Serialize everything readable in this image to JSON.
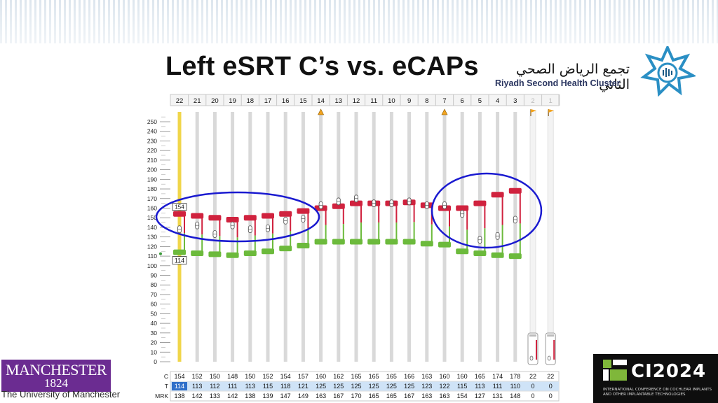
{
  "title": "Left eSRT C’s vs. eCAPs",
  "logo": {
    "arabic": "تجمع الرياض الصحي الثاني",
    "english": "Riyadh Second Health Cluster",
    "star_icon": "riyadh-cluster-star-icon"
  },
  "manchester": {
    "name": "MANCHESTER",
    "year": "1824",
    "subtitle": "The University of Manchester"
  },
  "ci2024": {
    "title": "CI2024",
    "subtitle": "INTERNATIONAL CONFERENCE ON COCHLEAR IMPLANTS AND OTHER IMPLANTABLE TECHNOLOGIES"
  },
  "colors": {
    "c_marker": "#d0223e",
    "t_marker": "#6cba3c",
    "circle": "#1a1ad0",
    "selected": "#f0d64a",
    "row_highlight": "#cfe3f7"
  },
  "chart_data": {
    "type": "scatter",
    "electrodes": [
      "22",
      "21",
      "20",
      "19",
      "18",
      "17",
      "16",
      "15",
      "14",
      "13",
      "12",
      "11",
      "10",
      "9",
      "8",
      "7",
      "6",
      "5",
      "4",
      "3",
      "2",
      "1"
    ],
    "ytick_labels": [
      "250",
      "240",
      "230",
      "220",
      "210",
      "200",
      "190",
      "180",
      "170",
      "160",
      "150",
      "140",
      "130",
      "120",
      "110",
      "100",
      "90",
      "80",
      "70",
      "60",
      "50",
      "40",
      "30",
      "20",
      "10",
      "0"
    ],
    "ylim": [
      0,
      250
    ],
    "series": [
      {
        "name": "C",
        "values": [
          154,
          152,
          150,
          148,
          150,
          152,
          154,
          157,
          160,
          162,
          165,
          165,
          165,
          166,
          163,
          160,
          160,
          165,
          174,
          178,
          22,
          22
        ]
      },
      {
        "name": "T",
        "values": [
          114,
          113,
          112,
          111,
          113,
          115,
          118,
          121,
          125,
          125,
          125,
          125,
          125,
          125,
          123,
          122,
          115,
          113,
          111,
          110,
          0,
          0
        ]
      },
      {
        "name": "MRK",
        "values": [
          138,
          142,
          133,
          142,
          138,
          139,
          147,
          149,
          163,
          167,
          170,
          165,
          165,
          167,
          163,
          163,
          154,
          127,
          131,
          148,
          0,
          0
        ]
      }
    ],
    "flags": {
      "14": "warning",
      "7": "warning",
      "2": "flag",
      "1": "flag"
    },
    "disabled_electrodes": [
      "2",
      "1"
    ],
    "selected_electrode": "22",
    "tags": {
      "c_tag": "154",
      "t_tag": "114"
    },
    "annotations": [
      "circle-electrodes-22-to-15",
      "circle-electrodes-7-to-3"
    ]
  }
}
